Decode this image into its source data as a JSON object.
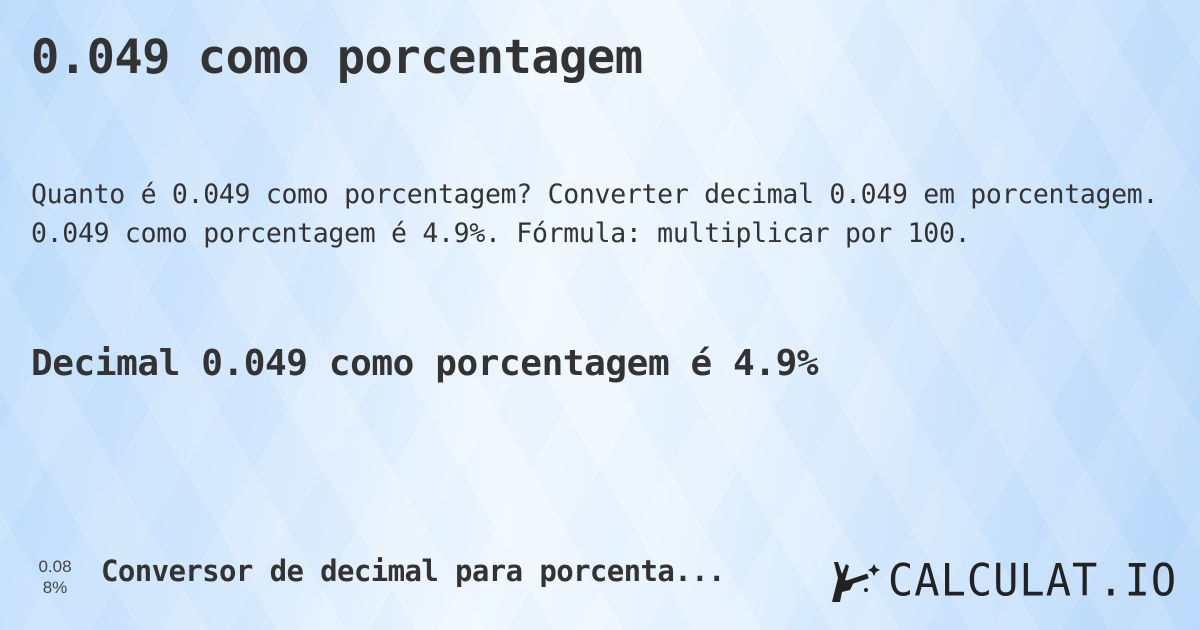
{
  "title": "0.049 como porcentagem",
  "description": "Quanto é 0.049 como porcentagem? Converter decimal 0.049 em porcentagem. 0.049 como porcentagem é 4.9%. Fórmula: multiplicar por 100.",
  "result": "Decimal 0.049 como porcentagem é 4.9%",
  "related": {
    "mini_top": "0.08",
    "mini_bottom": "8%",
    "label": "Conversor de decimal para porcenta..."
  },
  "logo": {
    "text": "CALCULAT.IO",
    "icon": "hand-magic-wand-icon"
  }
}
